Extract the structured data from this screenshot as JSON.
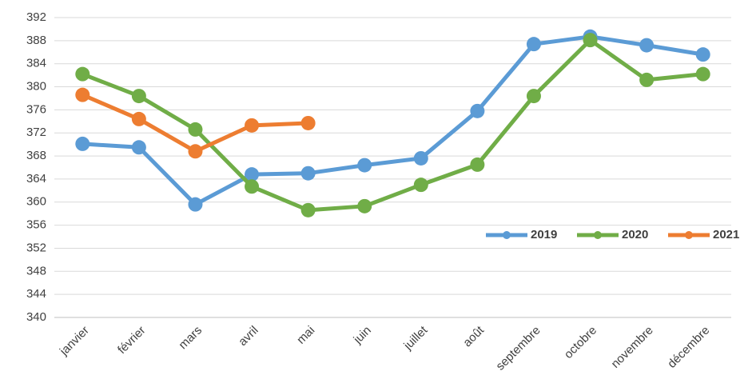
{
  "chart_data": {
    "type": "line",
    "categories": [
      "janvier",
      "février",
      "mars",
      "avril",
      "mai",
      "juin",
      "juillet",
      "août",
      "septembre",
      "octobre",
      "novembre",
      "décembre"
    ],
    "series": [
      {
        "name": "2019",
        "color": "#5b9bd5",
        "values": [
          370.1,
          369.5,
          359.6,
          364.8,
          365.0,
          366.4,
          367.6,
          375.8,
          387.4,
          388.7,
          387.2,
          385.6
        ]
      },
      {
        "name": "2020",
        "color": "#70ad47",
        "values": [
          382.2,
          378.4,
          372.6,
          362.7,
          358.6,
          359.3,
          363.0,
          366.5,
          378.4,
          388.1,
          381.2,
          382.2
        ]
      },
      {
        "name": "2021",
        "color": "#ed7d31",
        "values": [
          378.6,
          374.4,
          368.8,
          373.3,
          373.7,
          null,
          null,
          null,
          null,
          null,
          null,
          null
        ]
      }
    ],
    "ylim": [
      340,
      392
    ],
    "yticks": [
      340,
      344,
      348,
      352,
      356,
      360,
      364,
      368,
      372,
      376,
      380,
      384,
      388,
      392
    ],
    "grid": true
  }
}
